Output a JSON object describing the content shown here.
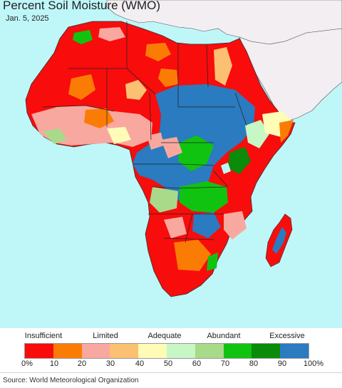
{
  "title": "Percent Soil Moisture (WMO)",
  "date": "Jan. 5, 2025",
  "legend": {
    "categories": [
      "Insufficient",
      "Limited",
      "Adequate",
      "Abundant",
      "Excessive"
    ],
    "ticks": [
      "0%",
      "10",
      "20",
      "30",
      "40",
      "50",
      "60",
      "70",
      "80",
      "90",
      "100%"
    ],
    "colors": [
      "#f80c0c",
      "#fb7c05",
      "#f9a8a0",
      "#fbc072",
      "#fefcb7",
      "#c7f7c5",
      "#a9da8a",
      "#11c311",
      "#0a8b0a",
      "#2a7bbf"
    ]
  },
  "source": "Source: World Meteorological Organization",
  "map_colors": {
    "ocean": "#bff7f9",
    "outside_land": "#f2eef2",
    "border": "#222222"
  }
}
